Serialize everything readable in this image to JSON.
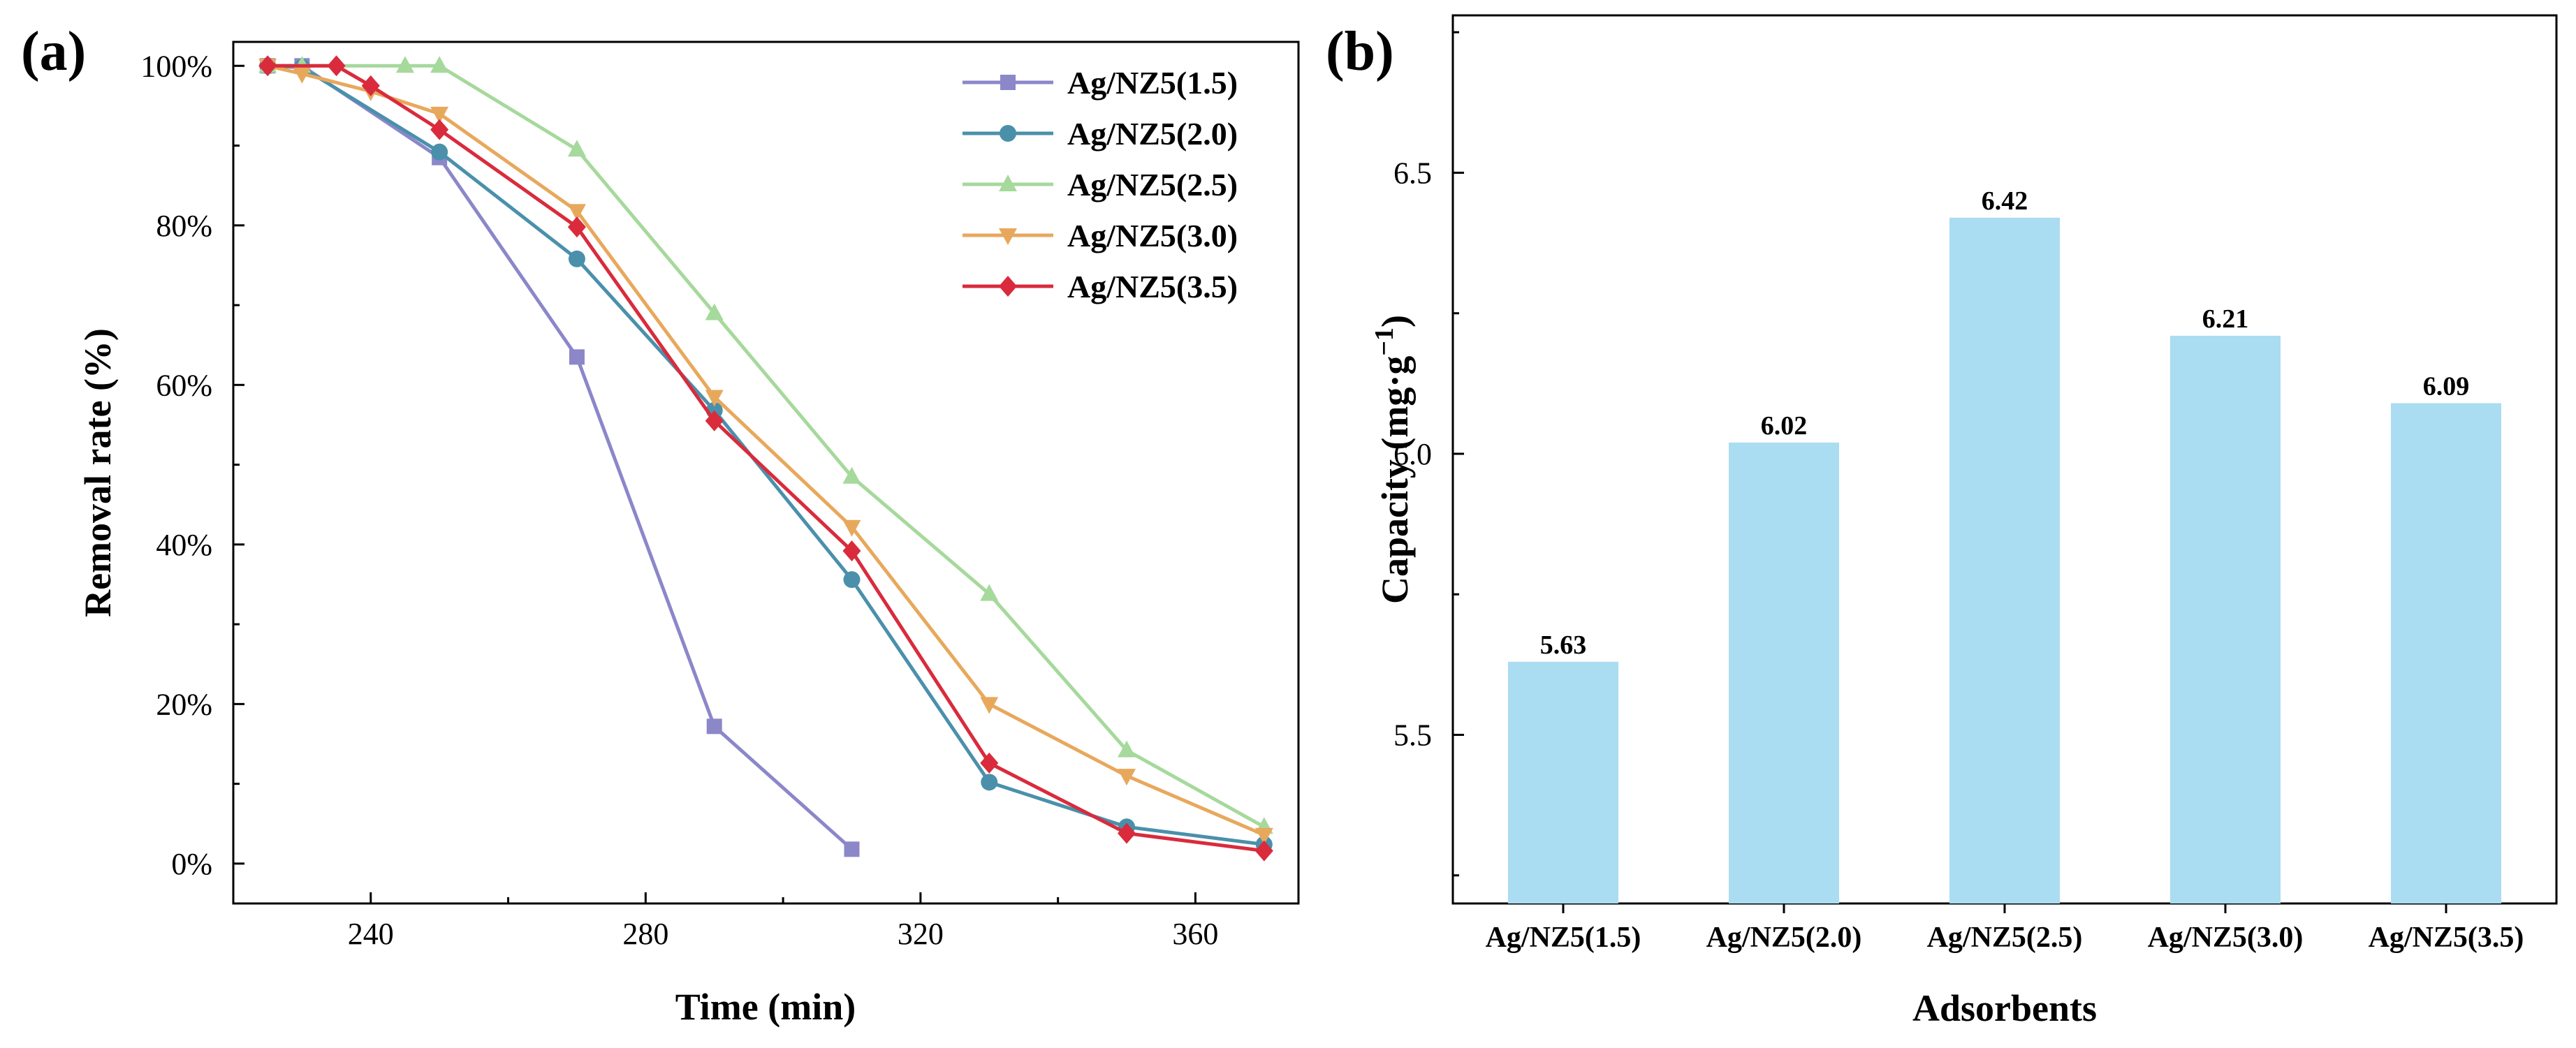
{
  "chart_data": [
    {
      "panel_label": "(a)",
      "type": "line",
      "xlabel": "Time (min)",
      "ylabel": "Removal rate (%)",
      "xlim": [
        220,
        375
      ],
      "ylim": [
        -5,
        103
      ],
      "x_ticks": [
        240,
        280,
        320,
        360
      ],
      "x_tick_labels": [
        "240",
        "280",
        "320",
        "360"
      ],
      "y_ticks": [
        0,
        20,
        40,
        60,
        80,
        100
      ],
      "y_tick_labels": [
        "0%",
        "20%",
        "40%",
        "60%",
        "80%",
        "100%"
      ],
      "legend_position": "top-right",
      "series": [
        {
          "name": "Ag/NZ5(1.5)",
          "color": "#8b87c9",
          "marker": "square",
          "x": [
            225,
            230,
            250,
            270,
            290,
            310
          ],
          "y": [
            100,
            100,
            88.5,
            63.5,
            17.2,
            1.8
          ]
        },
        {
          "name": "Ag/NZ5(2.0)",
          "color": "#4a90ab",
          "marker": "circle",
          "x": [
            225,
            230,
            250,
            270,
            290,
            310,
            330,
            350,
            370
          ],
          "y": [
            100,
            99.8,
            89.2,
            75.8,
            56.8,
            35.6,
            10.2,
            4.6,
            2.4
          ]
        },
        {
          "name": "Ag/NZ5(2.5)",
          "color": "#a6d99c",
          "marker": "triangle-up",
          "x": [
            225,
            230,
            245,
            250,
            270,
            290,
            310,
            330,
            350,
            370
          ],
          "y": [
            100,
            100,
            100,
            100,
            89.5,
            69.0,
            48.5,
            33.8,
            14.2,
            4.6
          ]
        },
        {
          "name": "Ag/NZ5(3.0)",
          "color": "#e8a85c",
          "marker": "triangle-down",
          "x": [
            225,
            230,
            240,
            250,
            270,
            290,
            310,
            330,
            350,
            370
          ],
          "y": [
            100,
            99.0,
            96.8,
            94.0,
            81.8,
            58.5,
            42.2,
            20.0,
            11.0,
            3.6
          ]
        },
        {
          "name": "Ag/NZ5(3.5)",
          "color": "#d92b3c",
          "marker": "diamond",
          "x": [
            225,
            235,
            240,
            250,
            270,
            290,
            310,
            330,
            350,
            370
          ],
          "y": [
            100,
            100,
            97.5,
            92.0,
            79.8,
            55.5,
            39.2,
            12.6,
            3.8,
            1.6
          ]
        }
      ]
    },
    {
      "panel_label": "(b)",
      "type": "bar",
      "xlabel": "Adsorbents",
      "ylabel_main": "Capacity (mg·g",
      "ylabel_sup": "−1",
      "ylabel_close": ")",
      "ylim": [
        5.2,
        6.78
      ],
      "y_ticks": [
        5.5,
        6.0,
        6.5
      ],
      "y_tick_labels": [
        "5.5",
        "6.0",
        "6.5"
      ],
      "categories": [
        "Ag/NZ5(1.5)",
        "Ag/NZ5(2.0)",
        "Ag/NZ5(2.5)",
        "Ag/NZ5(3.0)",
        "Ag/NZ5(3.5)"
      ],
      "values": [
        5.63,
        6.02,
        6.42,
        6.21,
        6.09
      ],
      "value_labels": [
        "5.63",
        "6.02",
        "6.42",
        "6.21",
        "6.09"
      ],
      "bar_color": "#aadcf2"
    }
  ]
}
